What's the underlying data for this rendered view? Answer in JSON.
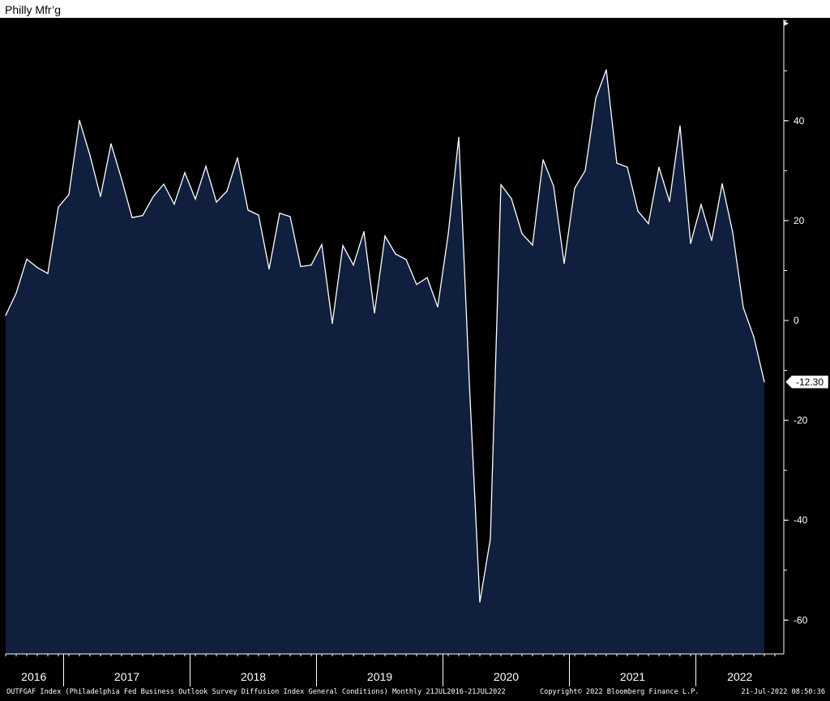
{
  "title": "Philly Mfr’g",
  "colors": {
    "plot_background": "#000000",
    "area_fill": "#0f1f3d",
    "line": "#ffffff",
    "axis": "#ffffff",
    "frame": "#000000"
  },
  "chart_data": {
    "type": "area",
    "title": "Philly Mfr’g",
    "xlabel": "",
    "ylabel": "",
    "ylim": [
      -66,
      60
    ],
    "y_ticks": [
      40,
      20,
      0,
      -20,
      -40,
      -60
    ],
    "y_tick_labels": [
      "40",
      "20",
      "0",
      "-20",
      "-40",
      "-60"
    ],
    "x_year_labels": [
      "2016",
      "2017",
      "2018",
      "2019",
      "2020",
      "2021",
      "2022"
    ],
    "y_axis_side": "right",
    "grid": false,
    "last_value": -12.3,
    "last_value_label": "-12.30",
    "series": [
      {
        "x": [
          "2016-07",
          "2016-08",
          "2016-09",
          "2016-10",
          "2016-11",
          "2016-12",
          "2017-01",
          "2017-02",
          "2017-03",
          "2017-04",
          "2017-05",
          "2017-06",
          "2017-07",
          "2017-08",
          "2017-09",
          "2017-10",
          "2017-11",
          "2017-12",
          "2018-01",
          "2018-02",
          "2018-03",
          "2018-04",
          "2018-05",
          "2018-06",
          "2018-07",
          "2018-08",
          "2018-09",
          "2018-10",
          "2018-11",
          "2018-12",
          "2019-01",
          "2019-02",
          "2019-03",
          "2019-04",
          "2019-05",
          "2019-06",
          "2019-07",
          "2019-08",
          "2019-09",
          "2019-10",
          "2019-11",
          "2019-12",
          "2020-01",
          "2020-02",
          "2020-03",
          "2020-04",
          "2020-05",
          "2020-06",
          "2020-07",
          "2020-08",
          "2020-09",
          "2020-10",
          "2020-11",
          "2020-12",
          "2021-01",
          "2021-02",
          "2021-03",
          "2021-04",
          "2021-05",
          "2021-06",
          "2021-07",
          "2021-08",
          "2021-09",
          "2021-10",
          "2021-11",
          "2021-12",
          "2022-01",
          "2022-02",
          "2022-03",
          "2022-04",
          "2022-05",
          "2022-06",
          "2022-07"
        ],
        "values": [
          1,
          5.5,
          12.3,
          10.6,
          9.4,
          22.7,
          25.2,
          40.1,
          33.1,
          24.8,
          35.4,
          28.3,
          20.6,
          21,
          24.8,
          27.3,
          23.3,
          29.6,
          24.3,
          30.9,
          23.7,
          25.9,
          32.6,
          22.1,
          21.1,
          10.3,
          21.5,
          20.8,
          10.8,
          11.1,
          15.2,
          -0.6,
          15,
          11.1,
          17.8,
          1.5,
          16.9,
          13.3,
          12.2,
          7.2,
          8.6,
          2.7,
          17.3,
          36.7,
          -12.4,
          -56.4,
          -43.7,
          27.2,
          24.4,
          17.4,
          15.1,
          32.2,
          26.9,
          11.4,
          26.5,
          30,
          44.5,
          50.2,
          31.5,
          30.7,
          21.9,
          19.4,
          30.7,
          23.8,
          39,
          15.4,
          23.2,
          16,
          27.4,
          17.6,
          2.6,
          -3.3,
          -12.3
        ]
      }
    ]
  },
  "footer": {
    "left": "OUTFGAF Index (Philadelphia Fed Business Outlook Survey Diffusion Index General Conditions)  Monthly 21JUL2016-21JUL2022",
    "center": "Copyright© 2022 Bloomberg Finance L.P.",
    "right": "21-Jul-2022 08:50:36"
  }
}
